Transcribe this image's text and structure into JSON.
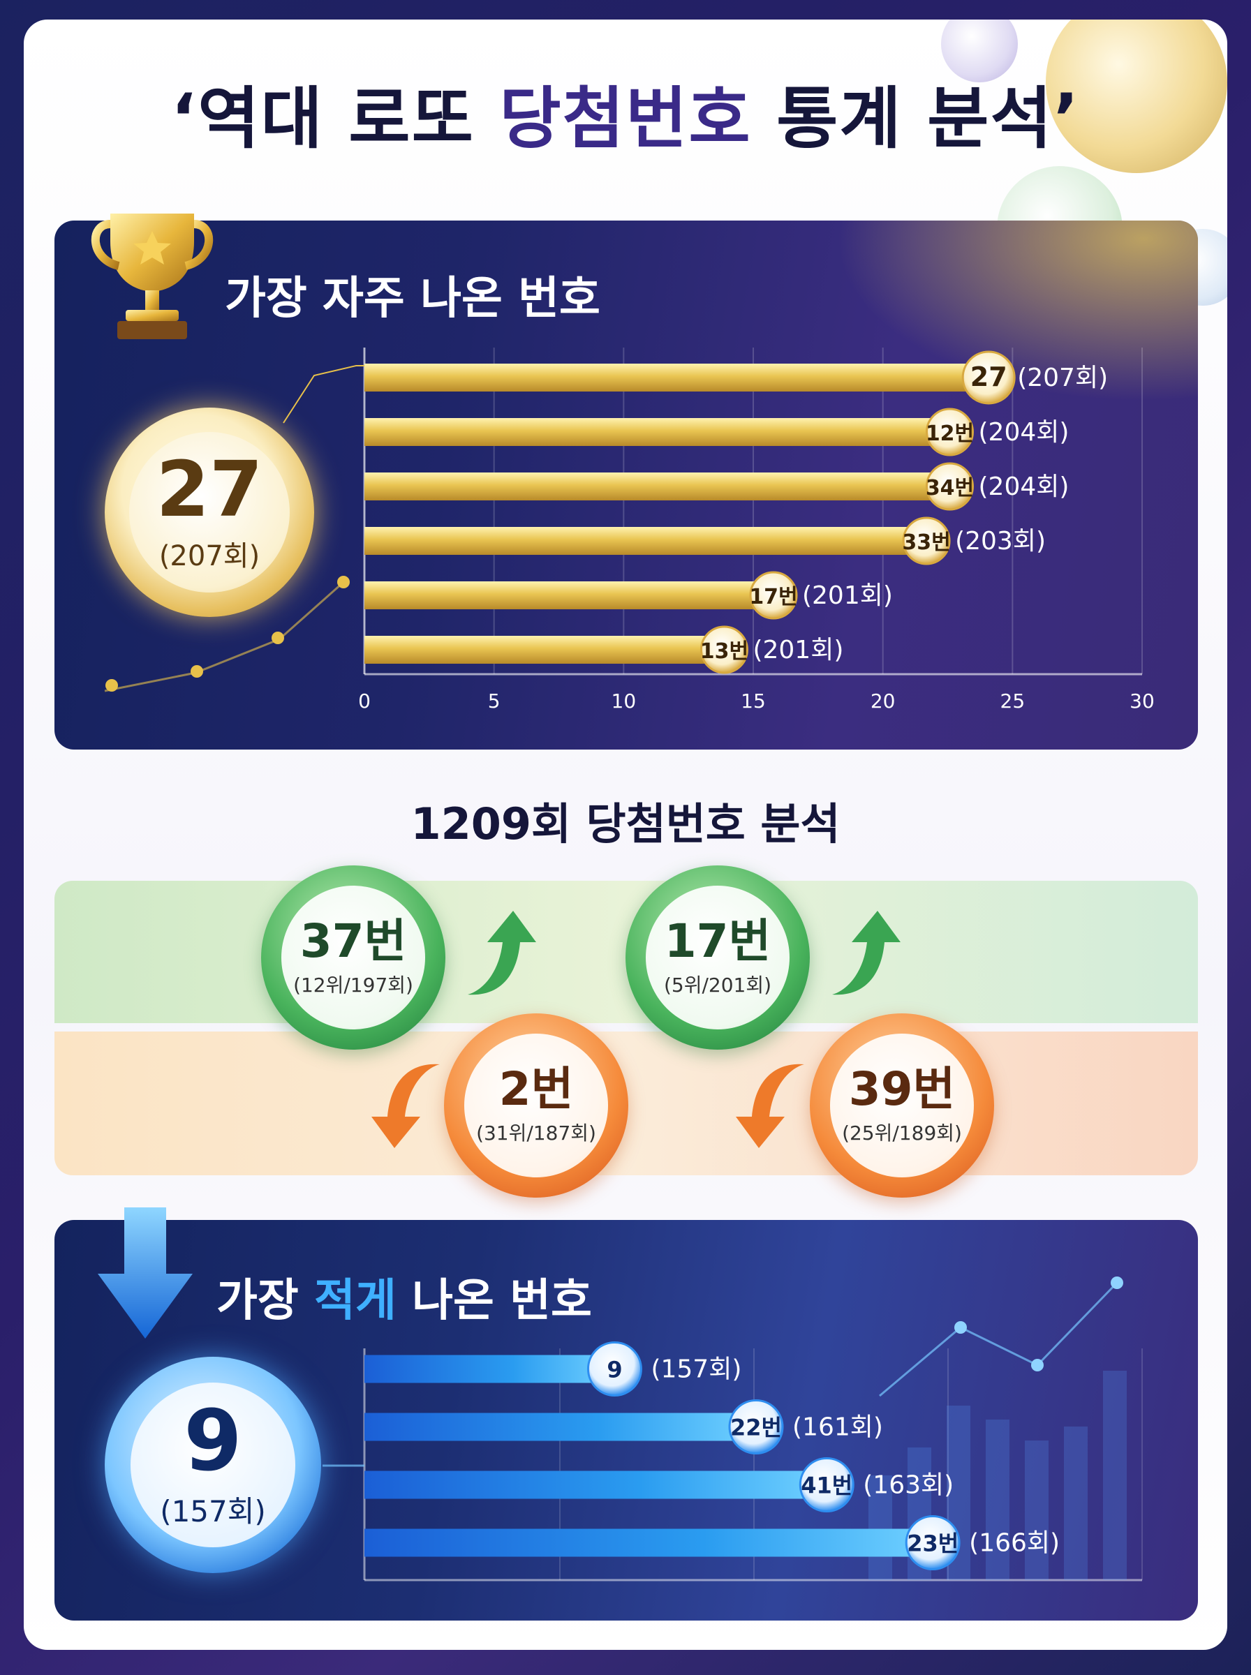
{
  "title": {
    "pre": "‘역대 로또 ",
    "accent": "당첨번호",
    "post": " 통계 분석’"
  },
  "top_panel": {
    "title": "가장 자주 나온 번호",
    "highlight": {
      "number": "27",
      "count": "(207회)"
    }
  },
  "middle": {
    "title": "1209회 당첨번호 분석",
    "up": [
      {
        "label": "37번",
        "detail": "(12위/197회)"
      },
      {
        "label": "17번",
        "detail": "(5위/201회)"
      }
    ],
    "down": [
      {
        "label": "2번",
        "detail": "(31위/187회)"
      },
      {
        "label": "39번",
        "detail": "(25위/189회)"
      }
    ]
  },
  "bottom_panel": {
    "title_pre": "가장 ",
    "title_accent": "적게",
    "title_post": " 나온 번호",
    "highlight": {
      "number": "9",
      "count": "(157회)"
    }
  },
  "colors": {
    "gold": "#e8c14a",
    "blue": "#2f9bf0",
    "green": "#3aa552",
    "orange": "#ee7a2a"
  },
  "chart_data": [
    {
      "type": "bar",
      "orientation": "horizontal",
      "title": "가장 자주 나온 번호",
      "categories": [
        "27",
        "12번",
        "34번",
        "33번",
        "17번",
        "13번"
      ],
      "value_labels": [
        "(207회)",
        "(204회)",
        "(204회)",
        "(203회)",
        "(201회)",
        "(201회)"
      ],
      "values": [
        24,
        22.5,
        22.5,
        21.6,
        15.7,
        13.8
      ],
      "xlim": [
        0,
        30
      ],
      "xticks": [
        "0",
        "5",
        "10",
        "15",
        "20",
        "25",
        "30"
      ],
      "grid": true
    },
    {
      "type": "bar",
      "orientation": "horizontal",
      "title": "가장 적게 나온 번호",
      "categories": [
        "9",
        "22번",
        "41번",
        "23번"
      ],
      "value_labels": [
        "(157회)",
        "(161회)",
        "(163회)",
        "(166회)"
      ],
      "values": [
        157,
        161,
        163,
        166
      ],
      "grid": true
    }
  ]
}
